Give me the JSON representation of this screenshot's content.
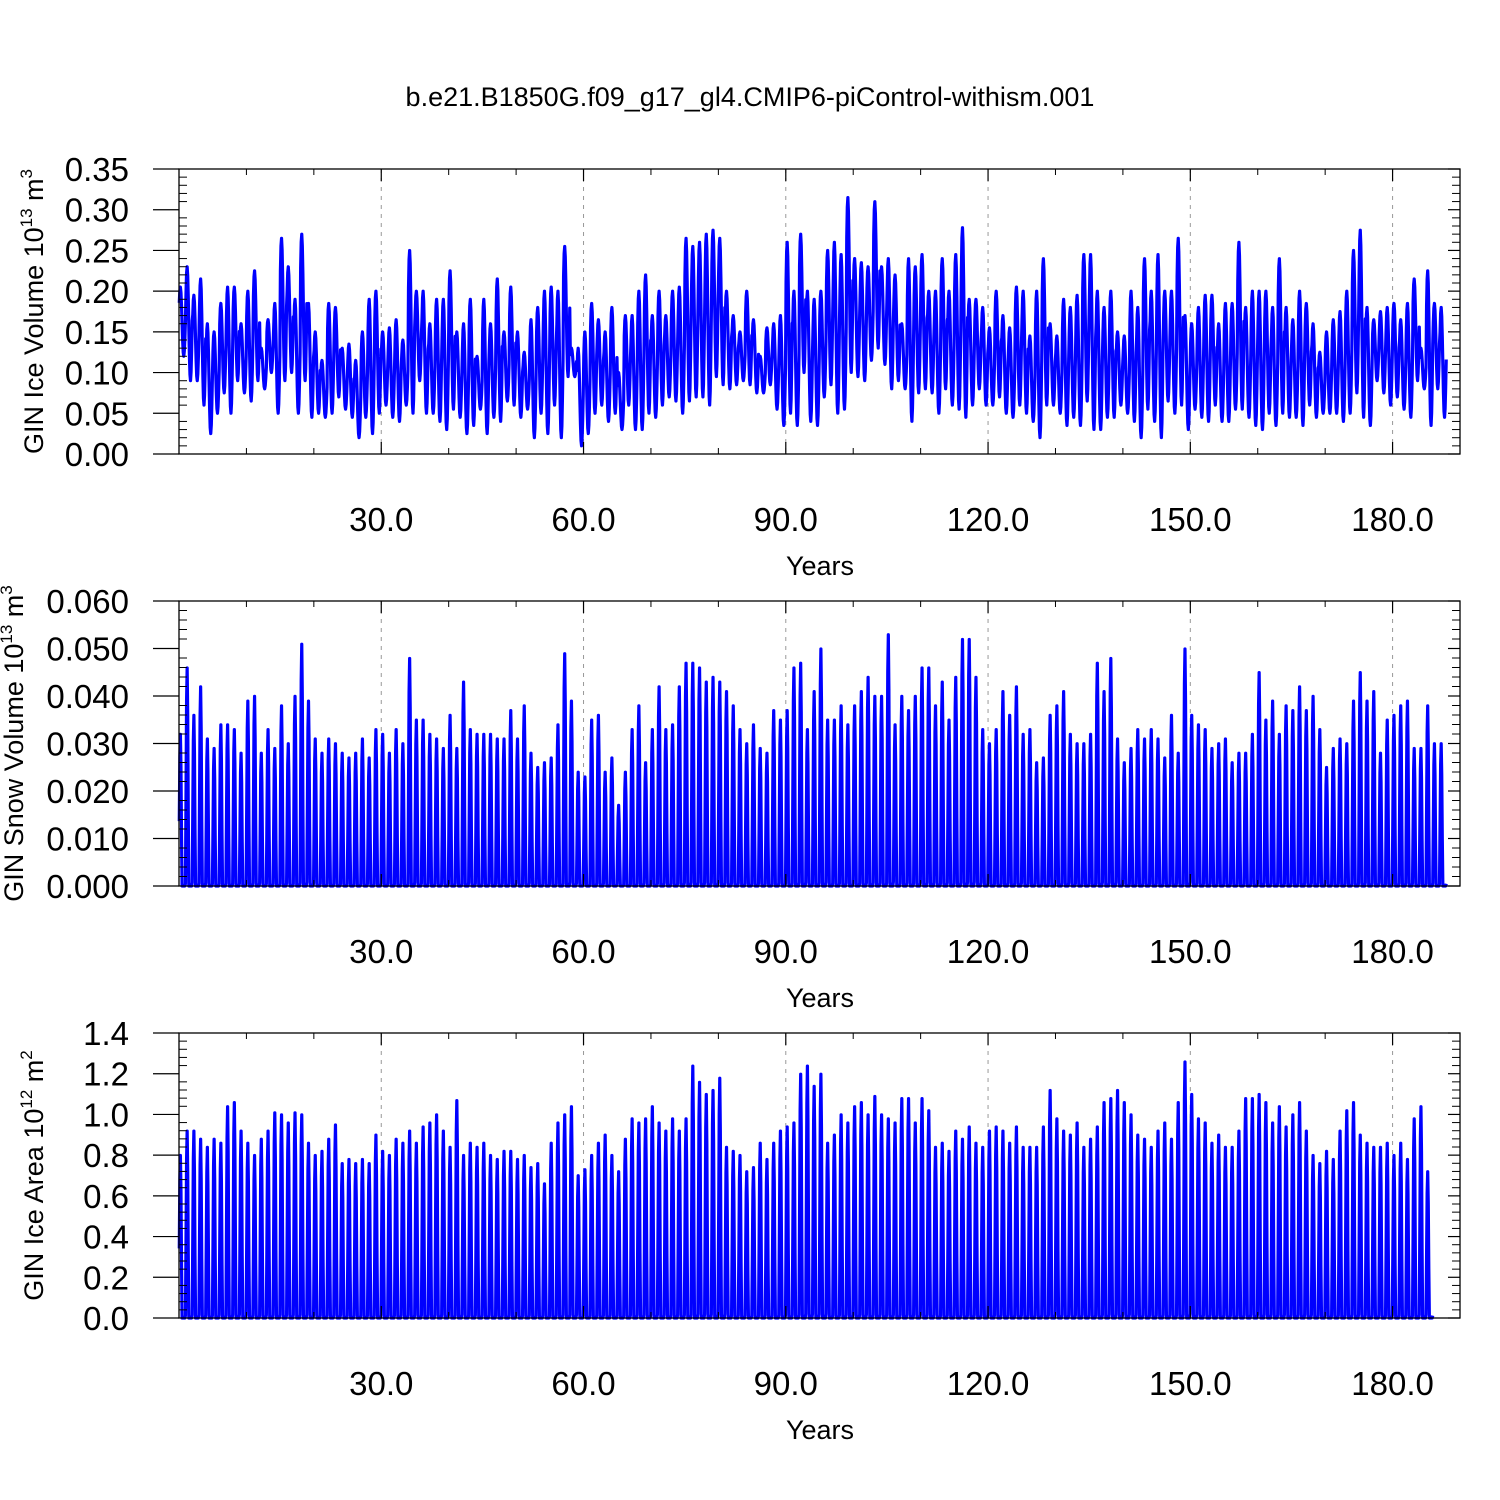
{
  "title": "b.e21.B1850G.f09_g17_gl4.CMIP6-piControl-withism.001",
  "colors": {
    "series": "#0000ff",
    "axis": "#000000",
    "grid": "#999999"
  },
  "chart_data": [
    {
      "type": "line",
      "ylabel": "GIN Ice Volume 10",
      "ylabel_exp": "13",
      "ylabel_unit": " m",
      "ylabel_unit_exp": "3",
      "xlabel": "Years",
      "xlim": [
        0,
        190
      ],
      "ylim": [
        0,
        0.35
      ],
      "xticks": [
        30,
        60,
        90,
        120,
        150,
        180
      ],
      "xtick_labels": [
        "30.0",
        "60.0",
        "90.0",
        "120.0",
        "150.0",
        "180.0"
      ],
      "yticks": [
        0,
        0.05,
        0.1,
        0.15,
        0.2,
        0.25,
        0.3,
        0.35
      ],
      "ytick_labels": [
        "0.00",
        "0.05",
        "0.10",
        "0.15",
        "0.20",
        "0.25",
        "0.30",
        "0.35"
      ],
      "vertical_grid": "dashed at major x ticks",
      "series": [
        {
          "color": "#0000ff",
          "points_per_year": 12,
          "annual_max": [
            0.205,
            0.23,
            0.195,
            0.215,
            0.16,
            0.15,
            0.185,
            0.205,
            0.205,
            0.16,
            0.2,
            0.225,
            0.13,
            0.165,
            0.185,
            0.265,
            0.23,
            0.19,
            0.27,
            0.185,
            0.15,
            0.115,
            0.185,
            0.18,
            0.13,
            0.135,
            0.115,
            0.15,
            0.19,
            0.2,
            0.15,
            0.155,
            0.165,
            0.14,
            0.25,
            0.2,
            0.2,
            0.16,
            0.19,
            0.19,
            0.225,
            0.15,
            0.16,
            0.19,
            0.12,
            0.19,
            0.16,
            0.215,
            0.15,
            0.205,
            0.15,
            0.125,
            0.165,
            0.18,
            0.2,
            0.205,
            0.2,
            0.255,
            0.13,
            0.13,
            0.15,
            0.185,
            0.165,
            0.15,
            0.18,
            0.1,
            0.17,
            0.17,
            0.2,
            0.22,
            0.17,
            0.2,
            0.17,
            0.2,
            0.205,
            0.265,
            0.255,
            0.26,
            0.27,
            0.275,
            0.265,
            0.2,
            0.17,
            0.15,
            0.2,
            0.165,
            0.12,
            0.155,
            0.16,
            0.17,
            0.26,
            0.2,
            0.27,
            0.2,
            0.19,
            0.2,
            0.25,
            0.26,
            0.245,
            0.315,
            0.24,
            0.235,
            0.23,
            0.31,
            0.23,
            0.24,
            0.22,
            0.16,
            0.24,
            0.23,
            0.245,
            0.2,
            0.2,
            0.24,
            0.2,
            0.245,
            0.278,
            0.19,
            0.19,
            0.18,
            0.155,
            0.2,
            0.17,
            0.155,
            0.205,
            0.2,
            0.145,
            0.2,
            0.24,
            0.16,
            0.145,
            0.19,
            0.18,
            0.195,
            0.245,
            0.245,
            0.2,
            0.18,
            0.2,
            0.15,
            0.145,
            0.2,
            0.18,
            0.24,
            0.2,
            0.245,
            0.2,
            0.2,
            0.265,
            0.17,
            0.16,
            0.18,
            0.195,
            0.195,
            0.16,
            0.185,
            0.185,
            0.26,
            0.18,
            0.2,
            0.2,
            0.2,
            0.18,
            0.24,
            0.18,
            0.165,
            0.2,
            0.185,
            0.16,
            0.125,
            0.15,
            0.165,
            0.175,
            0.2,
            0.25,
            0.275,
            0.18,
            0.165,
            0.175,
            0.18,
            0.185,
            0.165,
            0.185,
            0.215,
            0.13,
            0.225,
            0.185,
            0.18
          ],
          "annual_min": [
            0.12,
            0.09,
            0.09,
            0.06,
            0.025,
            0.05,
            0.075,
            0.05,
            0.09,
            0.075,
            0.065,
            0.09,
            0.08,
            0.1,
            0.05,
            0.09,
            0.1,
            0.05,
            0.09,
            0.045,
            0.05,
            0.045,
            0.05,
            0.07,
            0.055,
            0.045,
            0.02,
            0.045,
            0.025,
            0.05,
            0.06,
            0.045,
            0.04,
            0.06,
            0.05,
            0.09,
            0.05,
            0.05,
            0.04,
            0.03,
            0.055,
            0.045,
            0.025,
            0.035,
            0.055,
            0.025,
            0.045,
            0.04,
            0.065,
            0.06,
            0.045,
            0.055,
            0.02,
            0.05,
            0.025,
            0.06,
            0.02,
            0.095,
            0.095,
            0.01,
            0.025,
            0.05,
            0.06,
            0.04,
            0.05,
            0.03,
            0.06,
            0.03,
            0.03,
            0.05,
            0.045,
            0.06,
            0.07,
            0.065,
            0.05,
            0.065,
            0.07,
            0.07,
            0.06,
            0.095,
            0.085,
            0.08,
            0.085,
            0.09,
            0.085,
            0.075,
            0.075,
            0.085,
            0.055,
            0.035,
            0.05,
            0.035,
            0.1,
            0.04,
            0.035,
            0.07,
            0.085,
            0.05,
            0.055,
            0.1,
            0.095,
            0.09,
            0.115,
            0.13,
            0.11,
            0.08,
            0.09,
            0.08,
            0.04,
            0.075,
            0.08,
            0.075,
            0.05,
            0.08,
            0.06,
            0.055,
            0.045,
            0.06,
            0.08,
            0.06,
            0.06,
            0.07,
            0.05,
            0.045,
            0.06,
            0.05,
            0.04,
            0.02,
            0.06,
            0.06,
            0.05,
            0.035,
            0.045,
            0.035,
            0.065,
            0.03,
            0.03,
            0.045,
            0.045,
            0.06,
            0.05,
            0.04,
            0.02,
            0.055,
            0.04,
            0.02,
            0.065,
            0.05,
            0.06,
            0.03,
            0.055,
            0.045,
            0.04,
            0.06,
            0.04,
            0.04,
            0.055,
            0.055,
            0.045,
            0.035,
            0.03,
            0.05,
            0.035,
            0.05,
            0.045,
            0.045,
            0.035,
            0.06,
            0.045,
            0.05,
            0.05,
            0.05,
            0.04,
            0.05,
            0.075,
            0.045,
            0.035,
            0.09,
            0.075,
            0.06,
            0.07,
            0.055,
            0.045,
            0.09,
            0.08,
            0.035,
            0.08,
            0.045
          ]
        }
      ]
    },
    {
      "type": "line",
      "ylabel": "GIN Snow Volume 10",
      "ylabel_exp": "13",
      "ylabel_unit": " m",
      "ylabel_unit_exp": "3",
      "xlabel": "Years",
      "xlim": [
        0,
        190
      ],
      "ylim": [
        0,
        0.06
      ],
      "xticks": [
        30,
        60,
        90,
        120,
        150,
        180
      ],
      "xtick_labels": [
        "30.0",
        "60.0",
        "90.0",
        "120.0",
        "150.0",
        "180.0"
      ],
      "yticks": [
        0,
        0.01,
        0.02,
        0.03,
        0.04,
        0.05,
        0.06
      ],
      "ytick_labels": [
        "0.000",
        "0.010",
        "0.020",
        "0.030",
        "0.040",
        "0.050",
        "0.060"
      ],
      "vertical_grid": "dashed at major x ticks",
      "series": [
        {
          "color": "#0000ff",
          "points_per_year": 12,
          "annual_max": [
            0.032,
            0.046,
            0.036,
            0.042,
            0.031,
            0.029,
            0.034,
            0.034,
            0.033,
            0.028,
            0.039,
            0.04,
            0.028,
            0.033,
            0.029,
            0.038,
            0.03,
            0.04,
            0.051,
            0.039,
            0.031,
            0.028,
            0.031,
            0.03,
            0.028,
            0.027,
            0.028,
            0.031,
            0.027,
            0.033,
            0.032,
            0.028,
            0.033,
            0.03,
            0.048,
            0.035,
            0.035,
            0.032,
            0.031,
            0.029,
            0.036,
            0.029,
            0.043,
            0.033,
            0.032,
            0.032,
            0.032,
            0.031,
            0.031,
            0.037,
            0.031,
            0.038,
            0.028,
            0.025,
            0.026,
            0.027,
            0.034,
            0.049,
            0.039,
            0.024,
            0.023,
            0.035,
            0.036,
            0.024,
            0.027,
            0.017,
            0.024,
            0.033,
            0.038,
            0.026,
            0.033,
            0.042,
            0.033,
            0.034,
            0.042,
            0.047,
            0.047,
            0.046,
            0.043,
            0.044,
            0.043,
            0.041,
            0.038,
            0.033,
            0.03,
            0.034,
            0.029,
            0.028,
            0.037,
            0.035,
            0.037,
            0.046,
            0.047,
            0.033,
            0.041,
            0.05,
            0.035,
            0.035,
            0.038,
            0.034,
            0.038,
            0.041,
            0.044,
            0.04,
            0.04,
            0.053,
            0.034,
            0.04,
            0.037,
            0.04,
            0.046,
            0.046,
            0.038,
            0.043,
            0.035,
            0.044,
            0.052,
            0.052,
            0.044,
            0.033,
            0.03,
            0.033,
            0.041,
            0.036,
            0.042,
            0.032,
            0.033,
            0.026,
            0.027,
            0.036,
            0.038,
            0.041,
            0.032,
            0.03,
            0.03,
            0.032,
            0.047,
            0.041,
            0.048,
            0.031,
            0.026,
            0.029,
            0.033,
            0.031,
            0.033,
            0.031,
            0.027,
            0.036,
            0.028,
            0.05,
            0.036,
            0.034,
            0.033,
            0.029,
            0.03,
            0.031,
            0.026,
            0.028,
            0.028,
            0.032,
            0.045,
            0.035,
            0.039,
            0.032,
            0.038,
            0.037,
            0.042,
            0.037,
            0.04,
            0.033,
            0.025,
            0.029,
            0.031,
            0.03,
            0.039,
            0.045,
            0.039,
            0.041,
            0.028,
            0.035,
            0.036,
            0.038,
            0.039,
            0.029,
            0.029,
            0.038,
            0.03,
            0.03
          ]
        }
      ]
    },
    {
      "type": "line",
      "ylabel": "GIN Ice Area 10",
      "ylabel_exp": "12",
      "ylabel_unit": " m",
      "ylabel_unit_exp": "2",
      "xlabel": "Years",
      "xlim": [
        0,
        190
      ],
      "ylim": [
        0,
        1.4
      ],
      "xticks": [
        30,
        60,
        90,
        120,
        150,
        180
      ],
      "xtick_labels": [
        "30.0",
        "60.0",
        "90.0",
        "120.0",
        "150.0",
        "180.0"
      ],
      "yticks": [
        0,
        0.2,
        0.4,
        0.6,
        0.8,
        1.0,
        1.2,
        1.4
      ],
      "ytick_labels": [
        "0.0",
        "0.2",
        "0.4",
        "0.6",
        "0.8",
        "1.0",
        "1.2",
        "1.4"
      ],
      "vertical_grid": "dashed at major x ticks",
      "series": [
        {
          "color": "#0000ff",
          "points_per_year": 12,
          "annual_max": [
            0.8,
            0.92,
            0.92,
            0.88,
            0.84,
            0.88,
            0.86,
            1.04,
            1.06,
            0.92,
            0.86,
            0.8,
            0.88,
            0.92,
            1.01,
            1.0,
            0.96,
            1.01,
            1.0,
            0.86,
            0.8,
            0.82,
            0.88,
            0.95,
            0.76,
            0.78,
            0.76,
            0.78,
            0.76,
            0.9,
            0.82,
            0.8,
            0.88,
            0.86,
            0.92,
            0.86,
            0.94,
            0.96,
            1.0,
            0.92,
            0.84,
            1.07,
            0.8,
            0.86,
            0.84,
            0.86,
            0.8,
            0.78,
            0.82,
            0.82,
            0.78,
            0.8,
            0.74,
            0.76,
            0.66,
            0.86,
            0.96,
            1.0,
            1.04,
            0.7,
            0.73,
            0.8,
            0.86,
            0.9,
            0.8,
            0.72,
            0.88,
            0.98,
            0.96,
            0.98,
            1.04,
            0.96,
            0.92,
            0.98,
            0.92,
            0.98,
            1.24,
            1.16,
            1.1,
            1.12,
            1.18,
            0.84,
            0.82,
            0.8,
            0.72,
            0.74,
            0.86,
            0.78,
            0.86,
            0.92,
            0.94,
            0.96,
            1.2,
            1.24,
            1.14,
            1.2,
            0.86,
            0.9,
            1.0,
            0.96,
            1.04,
            1.06,
            1.0,
            1.09,
            1.0,
            0.98,
            0.96,
            1.08,
            1.08,
            0.96,
            1.08,
            1.02,
            0.84,
            0.86,
            0.82,
            0.92,
            0.88,
            0.94,
            0.86,
            0.84,
            0.92,
            0.94,
            0.92,
            0.86,
            0.94,
            0.84,
            0.84,
            0.84,
            0.94,
            1.12,
            0.98,
            0.92,
            0.9,
            0.96,
            0.84,
            0.88,
            0.94,
            1.06,
            1.08,
            1.12,
            1.06,
            1.0,
            0.9,
            0.88,
            0.84,
            0.92,
            0.96,
            0.88,
            1.06,
            1.26,
            1.1,
            0.98,
            0.96,
            0.86,
            0.9,
            0.84,
            0.84,
            0.92,
            1.08,
            1.08,
            1.1,
            1.06,
            0.96,
            1.04,
            0.94,
            1.0,
            1.06,
            0.92,
            0.8,
            0.76,
            0.82,
            0.78,
            0.92,
            1.02,
            1.06,
            0.9,
            0.86,
            0.84,
            0.84,
            0.86,
            0.8,
            0.86,
            0.78,
            0.98,
            1.04,
            0.72
          ]
        }
      ]
    }
  ]
}
